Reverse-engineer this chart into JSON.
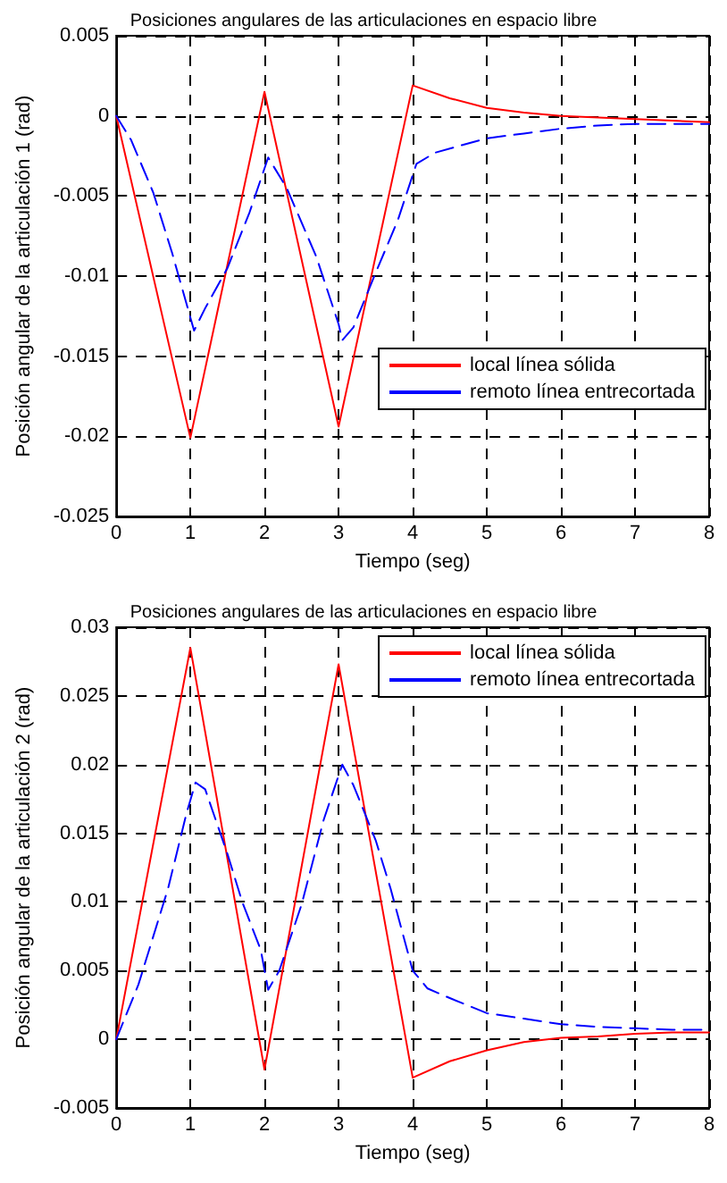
{
  "chart_data": [
    {
      "type": "line",
      "title": "Posiciones angulares de las articulaciones en espacio libre",
      "xlabel": "Tiempo (seg)",
      "ylabel": "Posición angular de la articulación 1 (rad)",
      "xlim": [
        0,
        8
      ],
      "xticks": [
        0,
        1,
        2,
        3,
        4,
        5,
        6,
        7,
        8
      ],
      "ylim": [
        -0.025,
        0.005
      ],
      "yticks": [
        -0.025,
        -0.02,
        -0.015,
        -0.01,
        -0.005,
        0,
        0.005
      ],
      "grid": true,
      "legend": "bottom right",
      "marker": "none",
      "series": [
        {
          "name": "local línea sólida",
          "color": "#ff0000",
          "line_style": "solid",
          "x": [
            0,
            1,
            2,
            3,
            4,
            4.5,
            5,
            5.5,
            6,
            6.5,
            7,
            7.5,
            8
          ],
          "values": [
            0,
            -0.0201,
            0.0015,
            -0.0194,
            0.0019,
            0.0011,
            0.0005,
            0.0002,
            0,
            -0.0001,
            -0.0002,
            -0.0003,
            -0.0004
          ]
        },
        {
          "name": "remoto línea entrecortada",
          "color": "#0000ff",
          "line_style": "dashed",
          "x": [
            0,
            0.2,
            0.5,
            0.75,
            1.05,
            1.2,
            1.5,
            1.8,
            2.05,
            2.3,
            2.7,
            3,
            3.05,
            3.2,
            3.5,
            3.8,
            4.05,
            4.3,
            5,
            5.5,
            6,
            6.5,
            7,
            8
          ],
          "values": [
            0,
            -0.0015,
            -0.0048,
            -0.0085,
            -0.0134,
            -0.012,
            -0.0095,
            -0.006,
            -0.0026,
            -0.0045,
            -0.0088,
            -0.013,
            -0.014,
            -0.0132,
            -0.0098,
            -0.0065,
            -0.003,
            -0.0023,
            -0.0014,
            -0.0011,
            -0.0008,
            -0.0006,
            -0.0005,
            -0.0005
          ]
        }
      ]
    },
    {
      "type": "line",
      "title": "Posiciones angulares de las articulaciones en espacio libre",
      "xlabel": "Tiempo (seg)",
      "ylabel": "Posición angular de la articulación 2 (rad)",
      "xlim": [
        0,
        8
      ],
      "xticks": [
        0,
        1,
        2,
        3,
        4,
        5,
        6,
        7,
        8
      ],
      "ylim": [
        -0.005,
        0.03
      ],
      "yticks": [
        -0.005,
        0,
        0.005,
        0.01,
        0.015,
        0.02,
        0.025,
        0.03
      ],
      "grid": true,
      "legend": "top right",
      "marker": "none",
      "series": [
        {
          "name": "local línea sólida",
          "color": "#ff0000",
          "line_style": "solid",
          "x": [
            0,
            1,
            2,
            3,
            4,
            4.5,
            5,
            5.5,
            6,
            6.5,
            7,
            7.5,
            8
          ],
          "values": [
            0,
            0.0285,
            -0.0022,
            0.0273,
            -0.0028,
            -0.0016,
            -0.0008,
            -0.0002,
            0.0001,
            0.0002,
            0.0004,
            0.0005,
            0.0005
          ]
        },
        {
          "name": "remoto línea entrecortada",
          "color": "#0000ff",
          "line_style": "dashed",
          "x": [
            0,
            0.3,
            0.7,
            0.95,
            1.07,
            1.2,
            1.5,
            1.7,
            1.95,
            2.05,
            2.2,
            2.5,
            2.8,
            3.05,
            3.2,
            3.5,
            3.7,
            4,
            4.2,
            4.5,
            5,
            5.5,
            6,
            6.5,
            7,
            7.5,
            8
          ],
          "values": [
            0,
            0.004,
            0.011,
            0.0165,
            0.0187,
            0.0182,
            0.0135,
            0.01,
            0.0065,
            0.0036,
            0.005,
            0.0098,
            0.016,
            0.02,
            0.0185,
            0.0145,
            0.011,
            0.005,
            0.0037,
            0.003,
            0.0019,
            0.0015,
            0.0011,
            0.0009,
            0.0008,
            0.0007,
            0.0007
          ]
        }
      ]
    }
  ]
}
